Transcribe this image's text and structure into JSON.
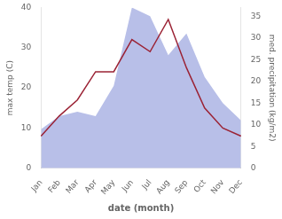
{
  "chart_data": {
    "type": "line",
    "xlabel": "date (month)",
    "ylabel": "max temp (C)",
    "y2label": "med. precipitation (kg/m2)",
    "categories": [
      "Jan",
      "Feb",
      "Mar",
      "Apr",
      "May",
      "Jun",
      "Jul",
      "Aug",
      "Sep",
      "Oct",
      "Nov",
      "Dec"
    ],
    "series": [
      {
        "type": "area",
        "axis": "y2",
        "color": "#b8bfe8",
        "values": [
          9,
          12,
          13,
          12,
          19,
          37,
          35,
          26,
          31,
          21,
          15,
          11
        ]
      },
      {
        "type": "line",
        "color": "#9B2335",
        "values": [
          8,
          13,
          17,
          24,
          24,
          32,
          29,
          37,
          25,
          15,
          10,
          8
        ]
      }
    ],
    "ylim": [
      0,
      40
    ],
    "yticks": [
      0,
      10,
      20,
      30,
      40
    ],
    "y2lim": [
      0,
      37
    ],
    "y2ticks": [
      0,
      5,
      10,
      15,
      20,
      25,
      30,
      35
    ],
    "grid": false
  }
}
